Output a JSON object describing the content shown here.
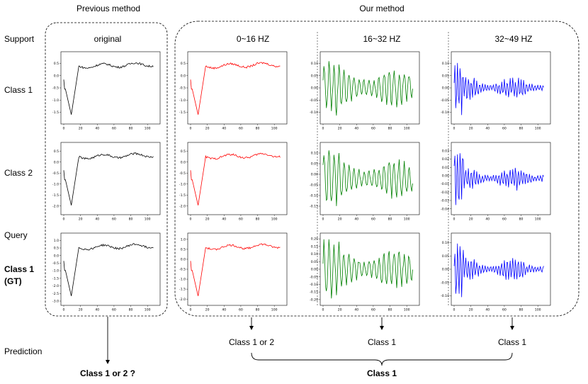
{
  "headers": {
    "previous_method": "Previous method",
    "our_method": "Our method",
    "original": "original",
    "band1": "0~16 HZ",
    "band2": "16~32 HZ",
    "band3": "32~49 HZ"
  },
  "rows": {
    "support": "Support",
    "class1": "Class 1",
    "class2": "Class 2",
    "query": "Query",
    "query_gt_line1": "Class 1",
    "query_gt_line2": "(GT)",
    "prediction": "Prediction"
  },
  "predictions": {
    "previous": "Class 1 or 2 ?",
    "band1": "Class 1 or 2",
    "band2": "Class 1",
    "band3": "Class 1",
    "ours_final": "Class 1"
  },
  "colors": {
    "original": "#000000",
    "band1": "#ff0000",
    "band2": "#008000",
    "band3": "#0000ff"
  },
  "x_ticks": [
    "0",
    "20",
    "40",
    "60",
    "80",
    "100"
  ],
  "panels": [
    {
      "id": "orig-class1",
      "col": 0,
      "row": 0,
      "kind": "low",
      "ylim": [
        -1.8,
        0.8
      ],
      "yticks": [
        "0.5",
        "0.0",
        "-0.5",
        "-1.0",
        "-1.5"
      ]
    },
    {
      "id": "band1-class1",
      "col": 1,
      "row": 0,
      "kind": "low",
      "ylim": [
        -1.8,
        0.8
      ],
      "yticks": [
        "0.5",
        "0.0",
        "-0.5",
        "-1.0",
        "-1.5"
      ]
    },
    {
      "id": "band2-class1",
      "col": 2,
      "row": 0,
      "kind": "mid",
      "ylim": [
        -0.13,
        0.13
      ],
      "yticks": [
        "0.10",
        "0.05",
        "0.00",
        "-0.05",
        "-0.10"
      ]
    },
    {
      "id": "band3-class1",
      "col": 3,
      "row": 0,
      "kind": "high",
      "ylim": [
        -0.13,
        0.13
      ],
      "yticks": [
        "0.10",
        "0.05",
        "0.00",
        "-0.05",
        "-0.10"
      ]
    },
    {
      "id": "orig-class2",
      "col": 0,
      "row": 1,
      "kind": "low",
      "ylim": [
        -2.2,
        0.7
      ],
      "yticks": [
        "0.5",
        "0.0",
        "-0.5",
        "-1.0",
        "-1.5",
        "-2.0"
      ]
    },
    {
      "id": "band1-class2",
      "col": 1,
      "row": 1,
      "kind": "low",
      "ylim": [
        -2.2,
        0.7
      ],
      "yticks": [
        "0.5",
        "0.0",
        "-0.5",
        "-1.0",
        "-1.5",
        "-2.0"
      ]
    },
    {
      "id": "band2-class2",
      "col": 2,
      "row": 1,
      "kind": "mid",
      "ylim": [
        -0.17,
        0.13
      ],
      "yticks": [
        "0.10",
        "0.05",
        "0.00",
        "-0.05",
        "-0.10",
        "-0.15"
      ]
    },
    {
      "id": "band3-class2",
      "col": 3,
      "row": 1,
      "kind": "high",
      "ylim": [
        -0.042,
        0.035
      ],
      "yticks": [
        "0.03",
        "0.02",
        "0.01",
        "0.00",
        "-0.01",
        "-0.02",
        "-0.03",
        "-0.04"
      ]
    },
    {
      "id": "orig-query",
      "col": 0,
      "row": 2,
      "kind": "low",
      "ylim": [
        -3.0,
        1.2
      ],
      "yticks": [
        "1.0",
        "0.5",
        "0.0",
        "-0.5",
        "-1.0",
        "-1.5",
        "-2.0",
        "-2.5",
        "-3.0"
      ]
    },
    {
      "id": "band1-query",
      "col": 1,
      "row": 2,
      "kind": "low",
      "ylim": [
        -2.1,
        1.1
      ],
      "yticks": [
        "1.0",
        "0.5",
        "0.0",
        "-0.5",
        "-1.0",
        "-1.5",
        "-2.0"
      ]
    },
    {
      "id": "band2-query",
      "col": 2,
      "row": 2,
      "kind": "mid",
      "ylim": [
        -0.21,
        0.21
      ],
      "yticks": [
        "0.20",
        "0.15",
        "0.10",
        "0.05",
        "0.00",
        "-0.05",
        "-0.10",
        "-0.15",
        "-0.20"
      ]
    },
    {
      "id": "band3-query",
      "col": 3,
      "row": 2,
      "kind": "high",
      "ylim": [
        -0.12,
        0.12
      ],
      "yticks": [
        "0.10",
        "0.05",
        "0.00",
        "-0.05",
        "-0.10"
      ]
    }
  ]
}
